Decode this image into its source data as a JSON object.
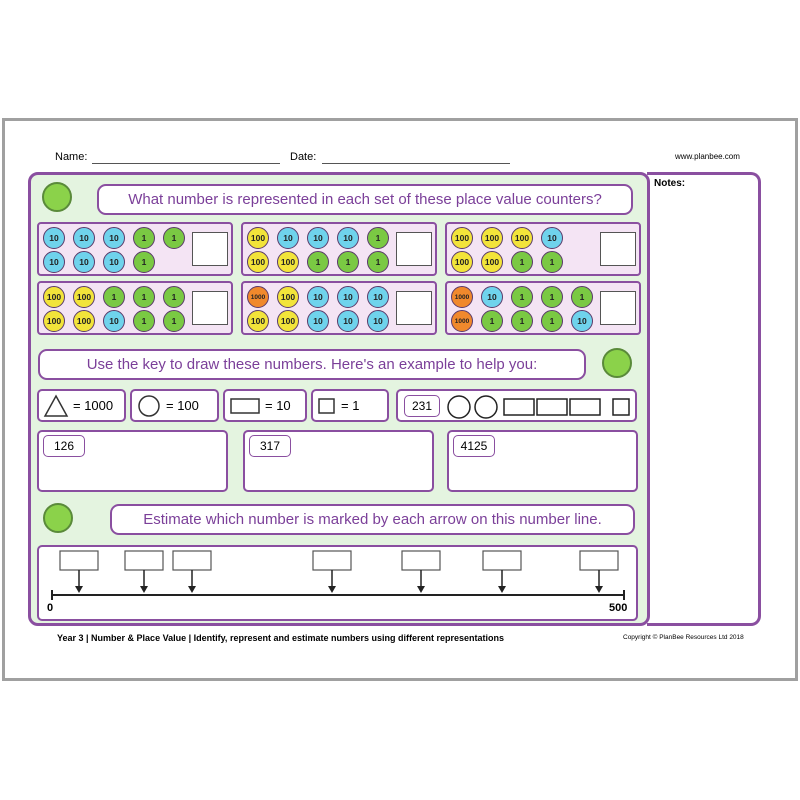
{
  "header": {
    "name_label": "Name:",
    "date_label": "Date:",
    "website": "www.planbee.com",
    "notes_label": "Notes:"
  },
  "question_1": {
    "prompt": "What number is represented in each set of these place value counters?",
    "counter_sets": [
      {
        "rows": [
          [
            {
              "label": "10",
              "color": "#6fd3ec"
            },
            {
              "label": "10",
              "color": "#6fd3ec"
            },
            {
              "label": "10",
              "color": "#6fd3ec"
            },
            {
              "label": "1",
              "color": "#7ac943"
            },
            {
              "label": "1",
              "color": "#7ac943"
            }
          ],
          [
            {
              "label": "10",
              "color": "#6fd3ec"
            },
            {
              "label": "10",
              "color": "#6fd3ec"
            },
            {
              "label": "10",
              "color": "#6fd3ec"
            },
            {
              "label": "1",
              "color": "#7ac943"
            }
          ]
        ]
      },
      {
        "rows": [
          [
            {
              "label": "100",
              "color": "#f2e43a"
            },
            {
              "label": "10",
              "color": "#6fd3ec"
            },
            {
              "label": "10",
              "color": "#6fd3ec"
            },
            {
              "label": "10",
              "color": "#6fd3ec"
            },
            {
              "label": "1",
              "color": "#7ac943"
            }
          ],
          [
            {
              "label": "100",
              "color": "#f2e43a"
            },
            {
              "label": "100",
              "color": "#f2e43a"
            },
            {
              "label": "1",
              "color": "#7ac943"
            },
            {
              "label": "1",
              "color": "#7ac943"
            },
            {
              "label": "1",
              "color": "#7ac943"
            }
          ]
        ]
      },
      {
        "rows": [
          [
            {
              "label": "100",
              "color": "#f2e43a"
            },
            {
              "label": "100",
              "color": "#f2e43a"
            },
            {
              "label": "100",
              "color": "#f2e43a"
            },
            {
              "label": "10",
              "color": "#6fd3ec"
            }
          ],
          [
            {
              "label": "100",
              "color": "#f2e43a"
            },
            {
              "label": "100",
              "color": "#f2e43a"
            },
            {
              "label": "1",
              "color": "#7ac943"
            },
            {
              "label": "1",
              "color": "#7ac943"
            }
          ]
        ]
      },
      {
        "rows": [
          [
            {
              "label": "100",
              "color": "#f2e43a"
            },
            {
              "label": "100",
              "color": "#f2e43a"
            },
            {
              "label": "1",
              "color": "#7ac943"
            },
            {
              "label": "1",
              "color": "#7ac943"
            },
            {
              "label": "1",
              "color": "#7ac943"
            }
          ],
          [
            {
              "label": "100",
              "color": "#f2e43a"
            },
            {
              "label": "100",
              "color": "#f2e43a"
            },
            {
              "label": "10",
              "color": "#6fd3ec"
            },
            {
              "label": "1",
              "color": "#7ac943"
            },
            {
              "label": "1",
              "color": "#7ac943"
            }
          ]
        ]
      },
      {
        "rows": [
          [
            {
              "label": "1000",
              "color": "#f0892c"
            },
            {
              "label": "100",
              "color": "#f2e43a"
            },
            {
              "label": "10",
              "color": "#6fd3ec"
            },
            {
              "label": "10",
              "color": "#6fd3ec"
            },
            {
              "label": "10",
              "color": "#6fd3ec"
            }
          ],
          [
            {
              "label": "100",
              "color": "#f2e43a"
            },
            {
              "label": "100",
              "color": "#f2e43a"
            },
            {
              "label": "10",
              "color": "#6fd3ec"
            },
            {
              "label": "10",
              "color": "#6fd3ec"
            },
            {
              "label": "10",
              "color": "#6fd3ec"
            }
          ]
        ]
      },
      {
        "rows": [
          [
            {
              "label": "1000",
              "color": "#f0892c"
            },
            {
              "label": "10",
              "color": "#6fd3ec"
            },
            {
              "label": "1",
              "color": "#7ac943"
            },
            {
              "label": "1",
              "color": "#7ac943"
            },
            {
              "label": "1",
              "color": "#7ac943"
            }
          ],
          [
            {
              "label": "1000",
              "color": "#f0892c"
            },
            {
              "label": "1",
              "color": "#7ac943"
            },
            {
              "label": "1",
              "color": "#7ac943"
            },
            {
              "label": "1",
              "color": "#7ac943"
            },
            {
              "label": "10",
              "color": "#6fd3ec"
            }
          ]
        ]
      }
    ]
  },
  "question_2": {
    "prompt": "Use the key to draw these numbers. Here's an example to help you:",
    "key": [
      "= 1000",
      "= 100",
      "= 10",
      "= 1"
    ],
    "example": "231",
    "numbers": [
      "126",
      "317",
      "4125"
    ]
  },
  "question_3": {
    "prompt": "Estimate which number is marked by each arrow on this number line.",
    "start_label": "0",
    "end_label": "500"
  },
  "footer": {
    "description": "Year 3 | Number & Place Value | Identify, represent and estimate numbers using different representations",
    "copyright": "Copyright © PlanBee Resources Ltd 2018"
  }
}
